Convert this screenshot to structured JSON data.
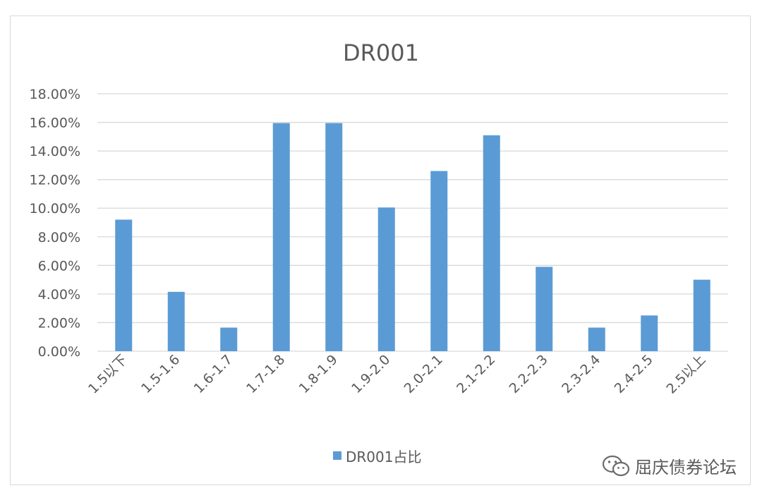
{
  "chart_data": {
    "type": "bar",
    "title": "DR001",
    "categories": [
      "1.5以下",
      "1.5-1.6",
      "1.6-1.7",
      "1.7-1.8",
      "1.8-1.9",
      "1.9-2.0",
      "2.0-2.1",
      "2.1-2.2",
      "2.2-2.3",
      "2.3-2.4",
      "2.4-2.5",
      "2.5以上"
    ],
    "series": [
      {
        "name": "DR001占比",
        "values": [
          9.2,
          4.15,
          1.65,
          15.95,
          15.95,
          10.05,
          12.6,
          15.1,
          5.9,
          1.65,
          2.5,
          5.0
        ]
      }
    ],
    "yticks": [
      "0.00%",
      "2.00%",
      "4.00%",
      "6.00%",
      "8.00%",
      "10.00%",
      "12.00%",
      "14.00%",
      "16.00%",
      "18.00%"
    ],
    "ylim": [
      0,
      18
    ],
    "grid": true,
    "legend_position": "bottom",
    "bar_color": "#5b9bd5"
  },
  "watermark": {
    "text": "屈庆债券论坛",
    "icon": "wechat-icon"
  }
}
